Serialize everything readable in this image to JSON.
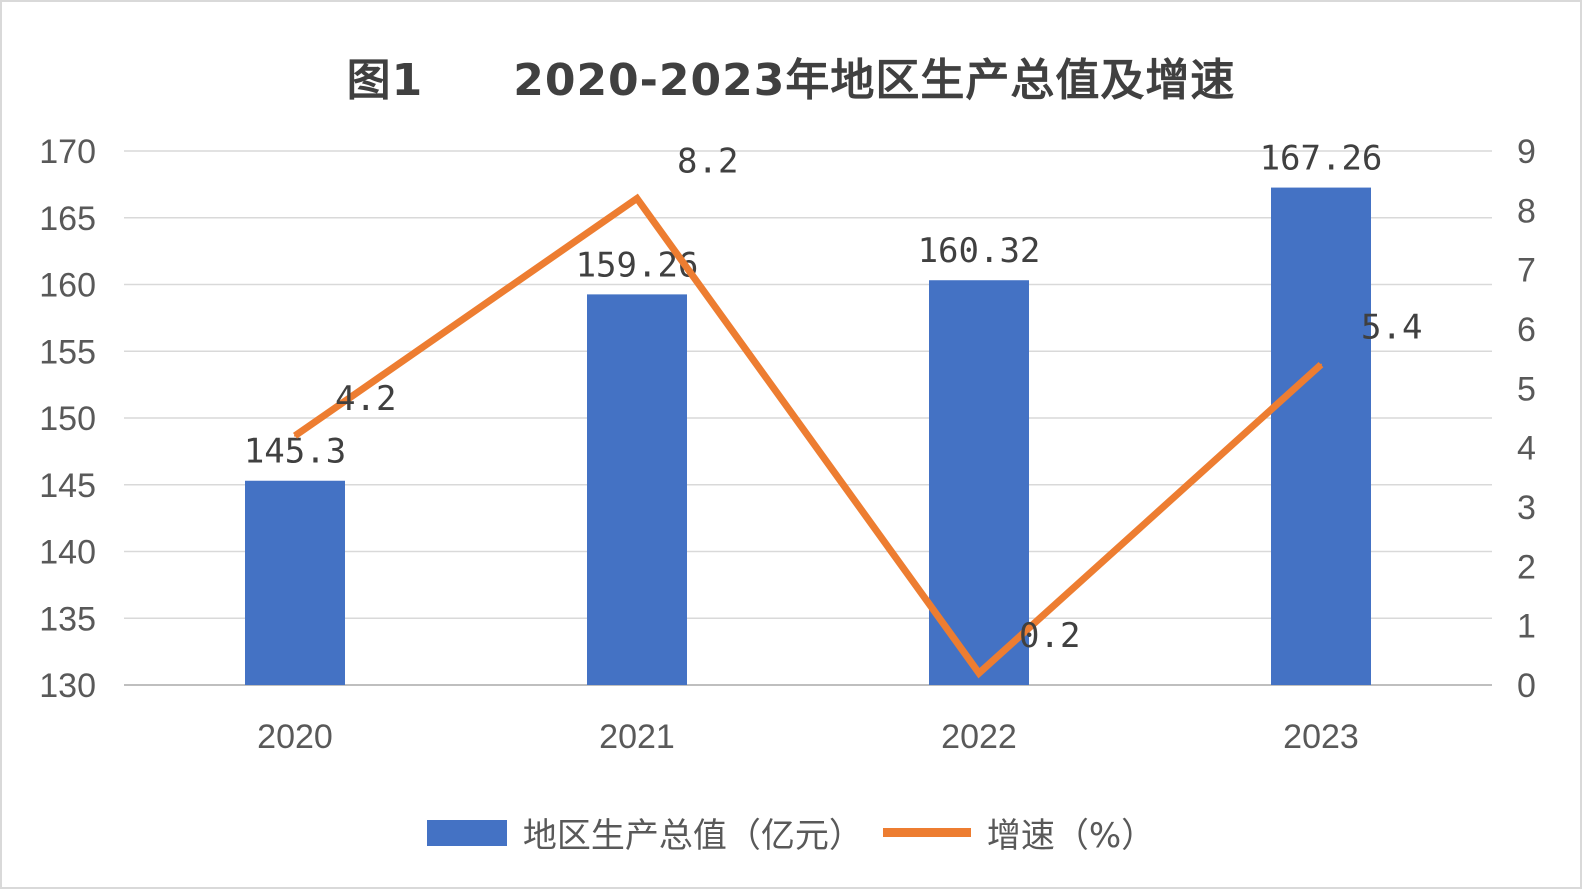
{
  "title": "图1　　2020-2023年地区生产总值及增速",
  "chart_data": {
    "type": "bar",
    "categories": [
      "2020",
      "2021",
      "2022",
      "2023"
    ],
    "series": [
      {
        "name": "地区生产总值（亿元）",
        "type": "bar",
        "axis": "left",
        "values": [
          145.3,
          159.26,
          160.32,
          167.26
        ],
        "labels": [
          "145.3",
          "159.26",
          "160.32",
          "167.26"
        ],
        "color": "#4472c4"
      },
      {
        "name": "增速（%）",
        "type": "line",
        "axis": "right",
        "values": [
          4.2,
          8.2,
          0.2,
          5.4
        ],
        "labels": [
          "4.2",
          "8.2",
          "0.2",
          "5.4"
        ],
        "color": "#ed7d31"
      }
    ],
    "y_left": {
      "min": 130,
      "max": 170,
      "step": 5,
      "ticks": [
        "130",
        "135",
        "140",
        "145",
        "150",
        "155",
        "160",
        "165",
        "170"
      ]
    },
    "y_right": {
      "min": 0,
      "max": 9,
      "step": 1,
      "ticks": [
        "0",
        "1",
        "2",
        "3",
        "4",
        "5",
        "6",
        "7",
        "8",
        "9"
      ]
    },
    "grid": true,
    "legend": "bottom"
  }
}
